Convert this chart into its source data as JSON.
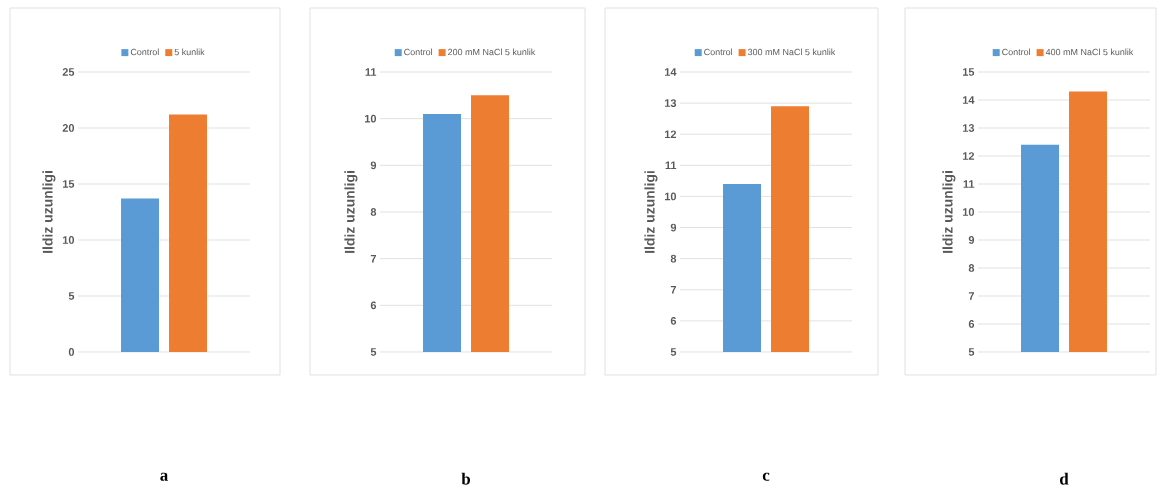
{
  "chart_data": [
    {
      "type": "bar",
      "title": "a",
      "ylabel": "Ildiz uzunligi",
      "categories": [
        null
      ],
      "ylim": [
        0,
        25
      ],
      "yticks": [
        0,
        5,
        10,
        15,
        20,
        25
      ],
      "grid": "y",
      "legend": "top",
      "tick_labels": "y",
      "series": [
        {
          "name": "Control",
          "color": "#5b9bd5",
          "values": [
            13.7
          ]
        },
        {
          "name": "5 kunlik",
          "color": "#ed7d31",
          "values": [
            21.2
          ]
        }
      ]
    },
    {
      "type": "bar",
      "title": "b",
      "ylabel": "Ildiz uzunligi",
      "categories": [
        null
      ],
      "ylim": [
        5,
        11
      ],
      "yticks": [
        5,
        6,
        7,
        8,
        9,
        10,
        11
      ],
      "grid": "y",
      "legend": "top",
      "tick_labels": "y",
      "series": [
        {
          "name": "Control",
          "color": "#5b9bd5",
          "values": [
            10.1
          ]
        },
        {
          "name": "200 mM NaCl 5 kunlik",
          "color": "#ed7d31",
          "values": [
            10.5
          ]
        }
      ]
    },
    {
      "type": "bar",
      "title": "c",
      "ylabel": "Ildiz uzunligi",
      "categories": [
        null
      ],
      "ylim": [
        5,
        14
      ],
      "yticks": [
        5,
        6,
        7,
        8,
        9,
        10,
        11,
        12,
        13,
        14
      ],
      "grid": "y",
      "legend": "top",
      "tick_labels": "y",
      "series": [
        {
          "name": "Control",
          "color": "#5b9bd5",
          "values": [
            10.4
          ]
        },
        {
          "name": "300 mM NaCl 5 kunlik",
          "color": "#ed7d31",
          "values": [
            12.9
          ]
        }
      ]
    },
    {
      "type": "bar",
      "title": "d",
      "ylabel": "Ildiz uzunligi",
      "categories": [
        null
      ],
      "ylim": [
        5,
        15
      ],
      "yticks": [
        5,
        6,
        7,
        8,
        9,
        10,
        11,
        12,
        13,
        14,
        15
      ],
      "grid": "y",
      "legend": "top",
      "tick_labels": "y",
      "series": [
        {
          "name": "Control",
          "color": "#5b9bd5",
          "values": [
            12.4
          ]
        },
        {
          "name": "400 mM NaCl 5 kunlik",
          "color": "#ed7d31",
          "values": [
            14.3
          ]
        }
      ]
    }
  ]
}
